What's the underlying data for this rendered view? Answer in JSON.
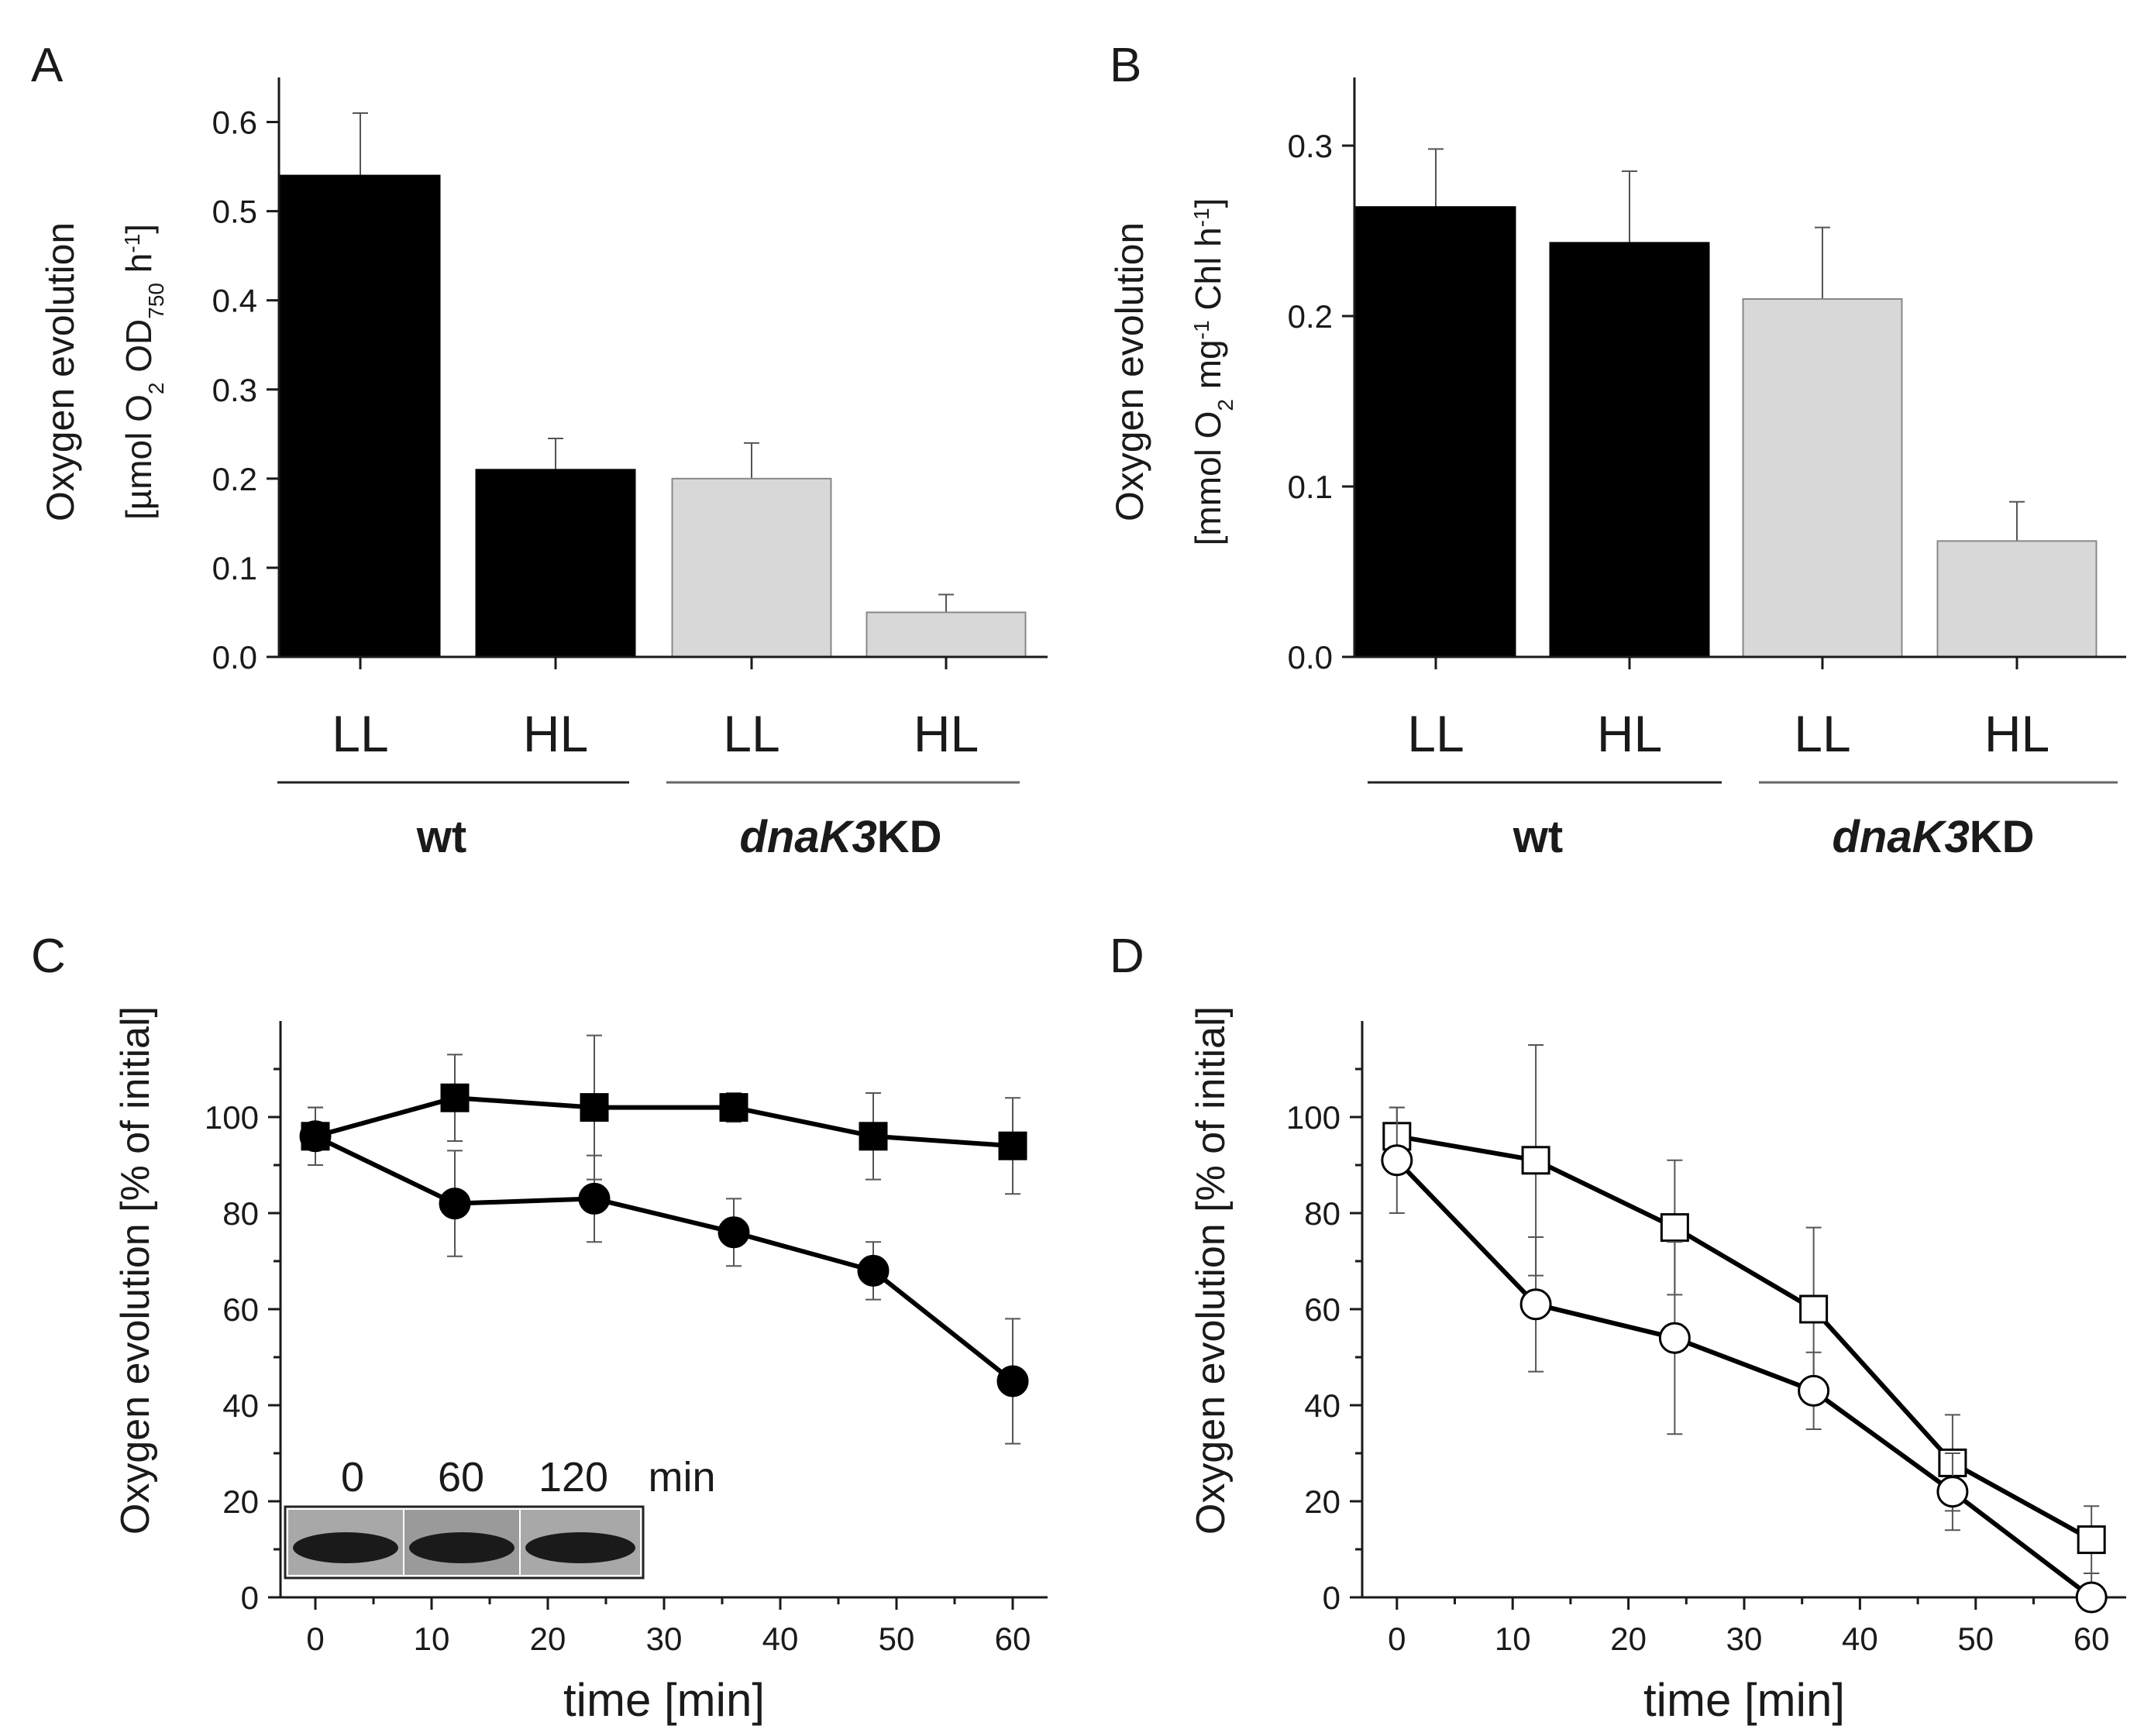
{
  "chart_data": [
    {
      "panel": "A",
      "type": "bar",
      "categories": [
        "LL",
        "HL",
        "LL",
        "HL"
      ],
      "groups": [
        {
          "label": "wt",
          "italic_part": "",
          "bold_part": "wt",
          "categories": [
            "LL",
            "HL"
          ],
          "color": "#000000"
        },
        {
          "label": "dnaK3KD",
          "italic_part": "dnaK3",
          "bold_part": "KD",
          "categories": [
            "LL",
            "HL"
          ],
          "color": "#d8d8d8"
        }
      ],
      "values": [
        0.54,
        0.21,
        0.2,
        0.05
      ],
      "errors": [
        0.07,
        0.035,
        0.04,
        0.02
      ],
      "ylabel_line1": "Oxygen evolution",
      "ylabel_line2_parts": [
        "[µmol O",
        "2",
        " OD",
        "750",
        " h",
        "-1",
        "]"
      ],
      "ylim": [
        0,
        0.65
      ],
      "yticks": [
        0.0,
        0.1,
        0.2,
        0.3,
        0.4,
        0.5,
        0.6
      ],
      "ytick_labels": [
        "0.0",
        "0.1",
        "0.2",
        "0.3",
        "0.4",
        "0.5",
        "0.6"
      ]
    },
    {
      "panel": "B",
      "type": "bar",
      "categories": [
        "LL",
        "HL",
        "LL",
        "HL"
      ],
      "groups": [
        {
          "label": "wt",
          "italic_part": "",
          "bold_part": "wt",
          "categories": [
            "LL",
            "HL"
          ],
          "color": "#000000"
        },
        {
          "label": "dnaK3KD",
          "italic_part": "dnaK3",
          "bold_part": "KD",
          "categories": [
            "LL",
            "HL"
          ],
          "color": "#d8d8d8"
        }
      ],
      "values": [
        0.264,
        0.243,
        0.21,
        0.068
      ],
      "errors": [
        0.034,
        0.042,
        0.042,
        0.023
      ],
      "ylabel_line1": "Oxygen evolution",
      "ylabel_line2_parts": [
        "[mmol O",
        "2",
        " mg",
        "-1",
        " Chl h",
        "-1",
        "]"
      ],
      "ylim": [
        0,
        0.34
      ],
      "yticks": [
        0.0,
        0.1,
        0.2,
        0.3
      ],
      "ytick_labels": [
        "0.0",
        "0.1",
        "0.2",
        "0.3"
      ]
    },
    {
      "panel": "C",
      "type": "line",
      "x": [
        0,
        12,
        24,
        36,
        48,
        60
      ],
      "series": [
        {
          "name": "squares",
          "marker": "square",
          "filled": true,
          "values": [
            96,
            104,
            102,
            102,
            96,
            94
          ],
          "errors": [
            6,
            9,
            15,
            3,
            9,
            10
          ]
        },
        {
          "name": "circles",
          "marker": "circle",
          "filled": true,
          "values": [
            96,
            82,
            83,
            76,
            68,
            45
          ],
          "errors": [
            6,
            11,
            9,
            7,
            6,
            13
          ]
        }
      ],
      "xlabel": "time [min]",
      "ylabel": "Oxygen evolution [% of initial]",
      "xlim": [
        -3,
        63
      ],
      "ylim": [
        0,
        120
      ],
      "xticks": [
        0,
        10,
        20,
        30,
        40,
        50,
        60
      ],
      "yticks": [
        0,
        20,
        40,
        60,
        80,
        100
      ],
      "inset": {
        "labels": [
          "0",
          "60",
          "120"
        ],
        "unit": "min"
      }
    },
    {
      "panel": "D",
      "type": "line",
      "x": [
        0,
        12,
        24,
        36,
        48,
        60
      ],
      "series": [
        {
          "name": "squares",
          "marker": "square",
          "filled": false,
          "values": [
            96,
            91,
            77,
            60,
            28,
            12
          ],
          "errors": [
            6,
            24,
            14,
            17,
            10,
            7
          ]
        },
        {
          "name": "circles",
          "marker": "circle",
          "filled": false,
          "values": [
            91,
            61,
            54,
            43,
            22,
            0
          ],
          "errors": [
            11,
            14,
            20,
            8,
            8,
            5
          ]
        }
      ],
      "xlabel": "time [min]",
      "ylabel": "Oxygen evolution [% of initial]",
      "xlim": [
        -3,
        63
      ],
      "ylim": [
        0,
        120
      ],
      "xticks": [
        0,
        10,
        20,
        30,
        40,
        50,
        60
      ],
      "yticks": [
        0,
        20,
        40,
        60,
        80,
        100
      ]
    }
  ]
}
